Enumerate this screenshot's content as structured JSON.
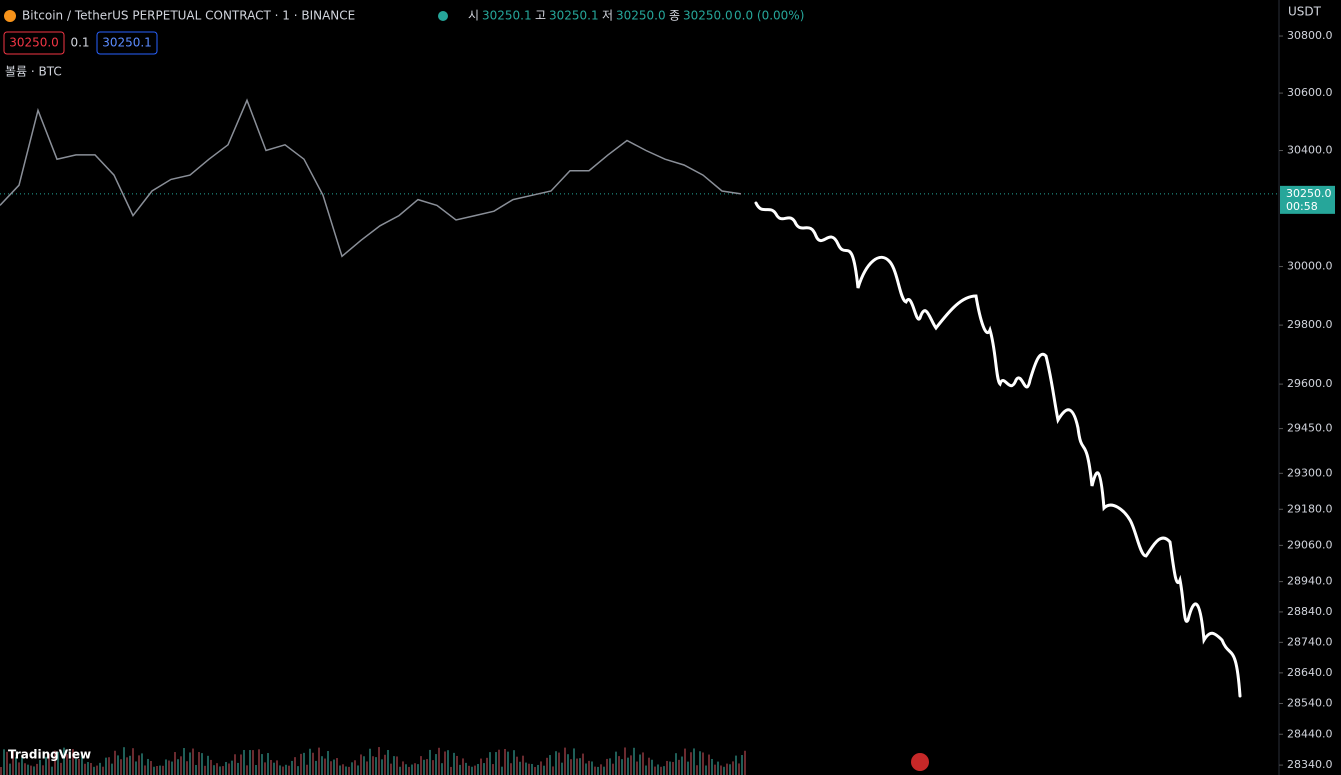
{
  "header": {
    "title": "Bitcoin / TetherUS PERPETUAL CONTRACT · 1 · BINANCE",
    "ohlc": [
      {
        "key": "시",
        "value": "30250.1"
      },
      {
        "key": "고",
        "value": "30250.1"
      },
      {
        "key": "저",
        "value": "30250.0"
      },
      {
        "key": "종",
        "value": "30250.0"
      }
    ],
    "change": "0.0 (0.00%)",
    "sell": "30250.0",
    "spread": "0.1",
    "buy": "30250.1",
    "volume_label": "볼륨 · BTC"
  },
  "currency": "USDT",
  "countdown": "00:58",
  "brand": "TradingView",
  "chart_data": {
    "type": "line",
    "log_scale": true,
    "color": "#8a8f98",
    "ylim": [
      28308,
      30927
    ],
    "yticks": [
      {
        "value": 30800,
        "label": "30800.0"
      },
      {
        "value": 30600,
        "label": "30600.0"
      },
      {
        "value": 30400,
        "label": "30400.0"
      },
      {
        "value": 30000,
        "label": "30000.0"
      },
      {
        "value": 29800,
        "label": "29800.0"
      },
      {
        "value": 29600,
        "label": "29600.0"
      },
      {
        "value": 29450,
        "label": "29450.0"
      },
      {
        "value": 29300,
        "label": "29300.0"
      },
      {
        "value": 29180,
        "label": "29180.0"
      },
      {
        "value": 29060,
        "label": "29060.0"
      },
      {
        "value": 28940,
        "label": "28940.0"
      },
      {
        "value": 28840,
        "label": "28840.0"
      },
      {
        "value": 28740,
        "label": "28740.0"
      },
      {
        "value": 28640,
        "label": "28640.0"
      },
      {
        "value": 28540,
        "label": "28540.0"
      },
      {
        "value": 28440,
        "label": "28440.0"
      },
      {
        "value": 28340,
        "label": "28340.0"
      }
    ],
    "last_price": {
      "value": 30250,
      "label": "30250.0"
    },
    "values": [
      30210,
      30280,
      30540,
      30370,
      30385,
      30385,
      30315,
      30175,
      30260,
      30300,
      30315,
      30370,
      30420,
      30575,
      30400,
      30420,
      30370,
      30245,
      30035,
      30090,
      30140,
      30175,
      30230,
      30210,
      30160,
      30175,
      30190,
      30230,
      30245,
      30260,
      30330,
      30330,
      30385,
      30435,
      30400,
      30370,
      30350,
      30315,
      30260,
      30250
    ]
  }
}
